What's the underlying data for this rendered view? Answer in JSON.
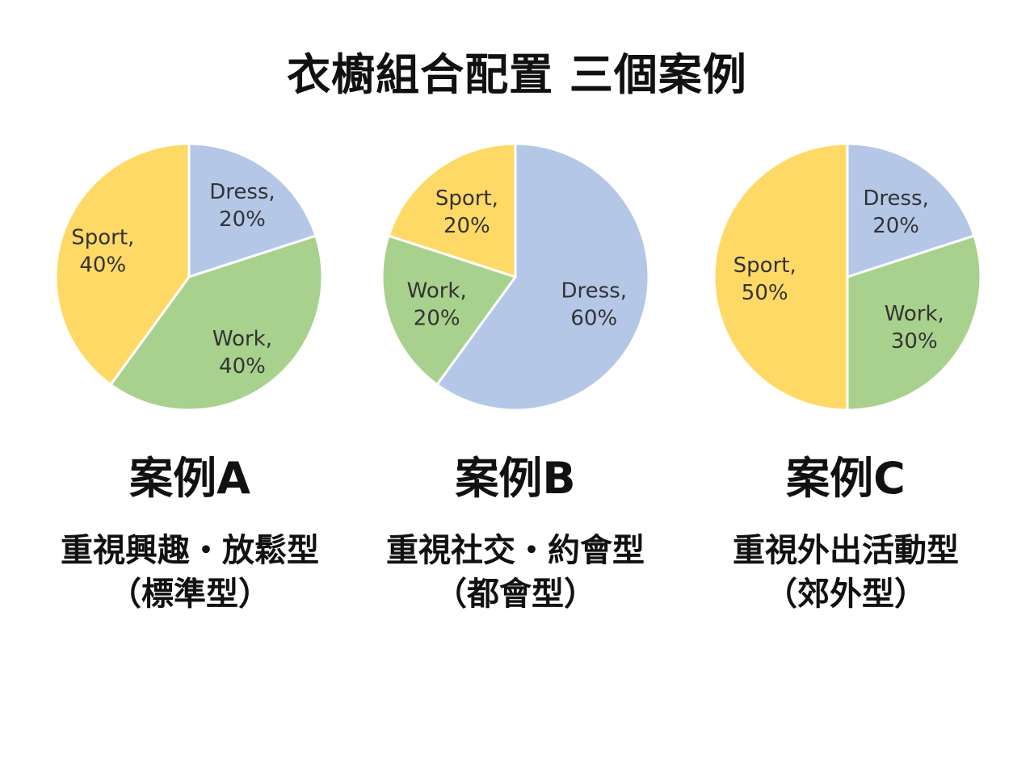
{
  "title": "衣櫥組合配置 三個案例",
  "colors": {
    "Dress": "#b4c7e7",
    "Work": "#a9d18e",
    "Sport": "#ffd966"
  },
  "chart_data": [
    {
      "type": "pie",
      "title": "案例A",
      "slices": [
        {
          "label": "Dress",
          "value": 20,
          "text": "20%"
        },
        {
          "label": "Work",
          "value": 40,
          "text": "40%"
        },
        {
          "label": "Sport",
          "value": 40,
          "text": "40%"
        }
      ]
    },
    {
      "type": "pie",
      "title": "案例B",
      "slices": [
        {
          "label": "Dress",
          "value": 60,
          "text": "60%"
        },
        {
          "label": "Work",
          "value": 20,
          "text": "20%"
        },
        {
          "label": "Sport",
          "value": 20,
          "text": "20%"
        }
      ]
    },
    {
      "type": "pie",
      "title": "案例C",
      "slices": [
        {
          "label": "Dress",
          "value": 20,
          "text": "20%"
        },
        {
          "label": "Work",
          "value": 30,
          "text": "30%"
        },
        {
          "label": "Sport",
          "value": 50,
          "text": "50%"
        }
      ]
    }
  ],
  "cases": [
    {
      "name": "案例A",
      "line1": "重視興趣・放鬆型",
      "line2": "（標準型）"
    },
    {
      "name": "案例B",
      "line1": "重視社交・約會型",
      "line2": "（都會型）"
    },
    {
      "name": "案例C",
      "line1": "重視外出活動型",
      "line2": "（郊外型）"
    }
  ]
}
